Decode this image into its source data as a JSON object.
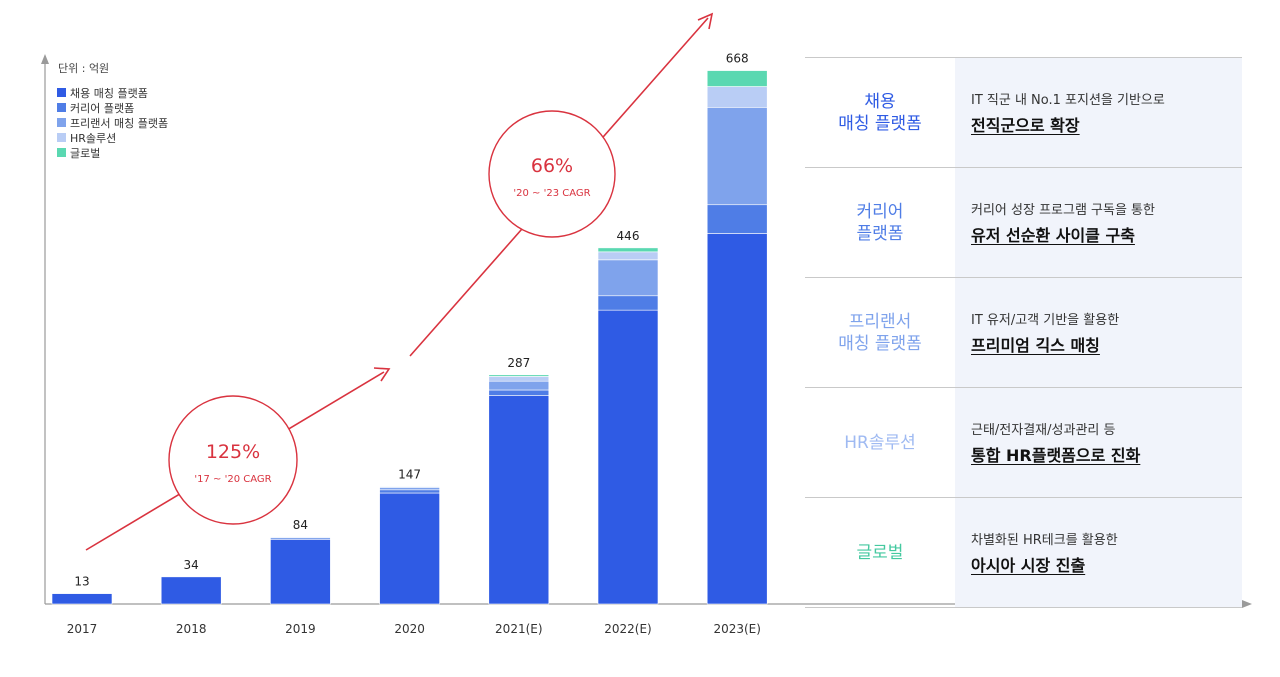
{
  "chart_data": {
    "type": "bar",
    "unit_label": "단위 : 억원",
    "categories": [
      "2017",
      "2018",
      "2019",
      "2020",
      "2021(E)",
      "2022(E)",
      "2023(E)"
    ],
    "totals": [
      13,
      34,
      84,
      147,
      287,
      446,
      668
    ],
    "ylim": [
      0,
      680
    ],
    "series": [
      {
        "name": "채용 매칭 플랫폼",
        "color": "#2f5be4",
        "values": [
          13,
          34,
          81,
          139,
          261,
          368,
          464
        ]
      },
      {
        "name": "커리어 플랫폼",
        "color": "#4f7de6",
        "values": [
          0,
          0,
          0,
          4,
          7,
          18,
          36
        ]
      },
      {
        "name": "프리랜서 매칭 플랫폼",
        "color": "#7fa3ec",
        "values": [
          0,
          0,
          2,
          3,
          11,
          45,
          122
        ]
      },
      {
        "name": "HR솔루션",
        "color": "#b9cdf5",
        "values": [
          0,
          0,
          1,
          1,
          6,
          10,
          26
        ]
      },
      {
        "name": "글로벌",
        "color": "#5ad8b1",
        "values": [
          0,
          0,
          0,
          0,
          2,
          5,
          20
        ]
      }
    ],
    "annotations": [
      {
        "value": "125%",
        "label": "'17 ~ '20 CAGR"
      },
      {
        "value": "66%",
        "label": "'20 ~ '23 CAGR"
      }
    ],
    "annotation_color": "#d9333f"
  },
  "side_table": [
    {
      "name": "채용\n매칭 플랫폼",
      "color": "#2f5be4",
      "desc": "IT 직군 내 No.1 포지션을 기반으로",
      "highlight": "전직군으로 확장"
    },
    {
      "name": "커리어\n플랫폼",
      "color": "#4f7de6",
      "desc": "커리어 성장 프로그램 구독을 통한",
      "highlight": "유저 선순환 사이클 구축"
    },
    {
      "name": "프리랜서\n매칭 플랫폼",
      "color": "#7fa3ec",
      "desc": "IT 유저/고객 기반을 활용한",
      "highlight": "프리미엄 긱스 매칭"
    },
    {
      "name": "HR솔루션",
      "color": "#9fbaf2",
      "desc": "근태/전자결재/성과관리 등",
      "highlight": "통합 HR플랫폼으로 진화"
    },
    {
      "name": "글로벌",
      "color": "#45c9a0",
      "desc": "차별화된 HR테크를 활용한",
      "highlight": "아시아 시장 진출"
    }
  ]
}
